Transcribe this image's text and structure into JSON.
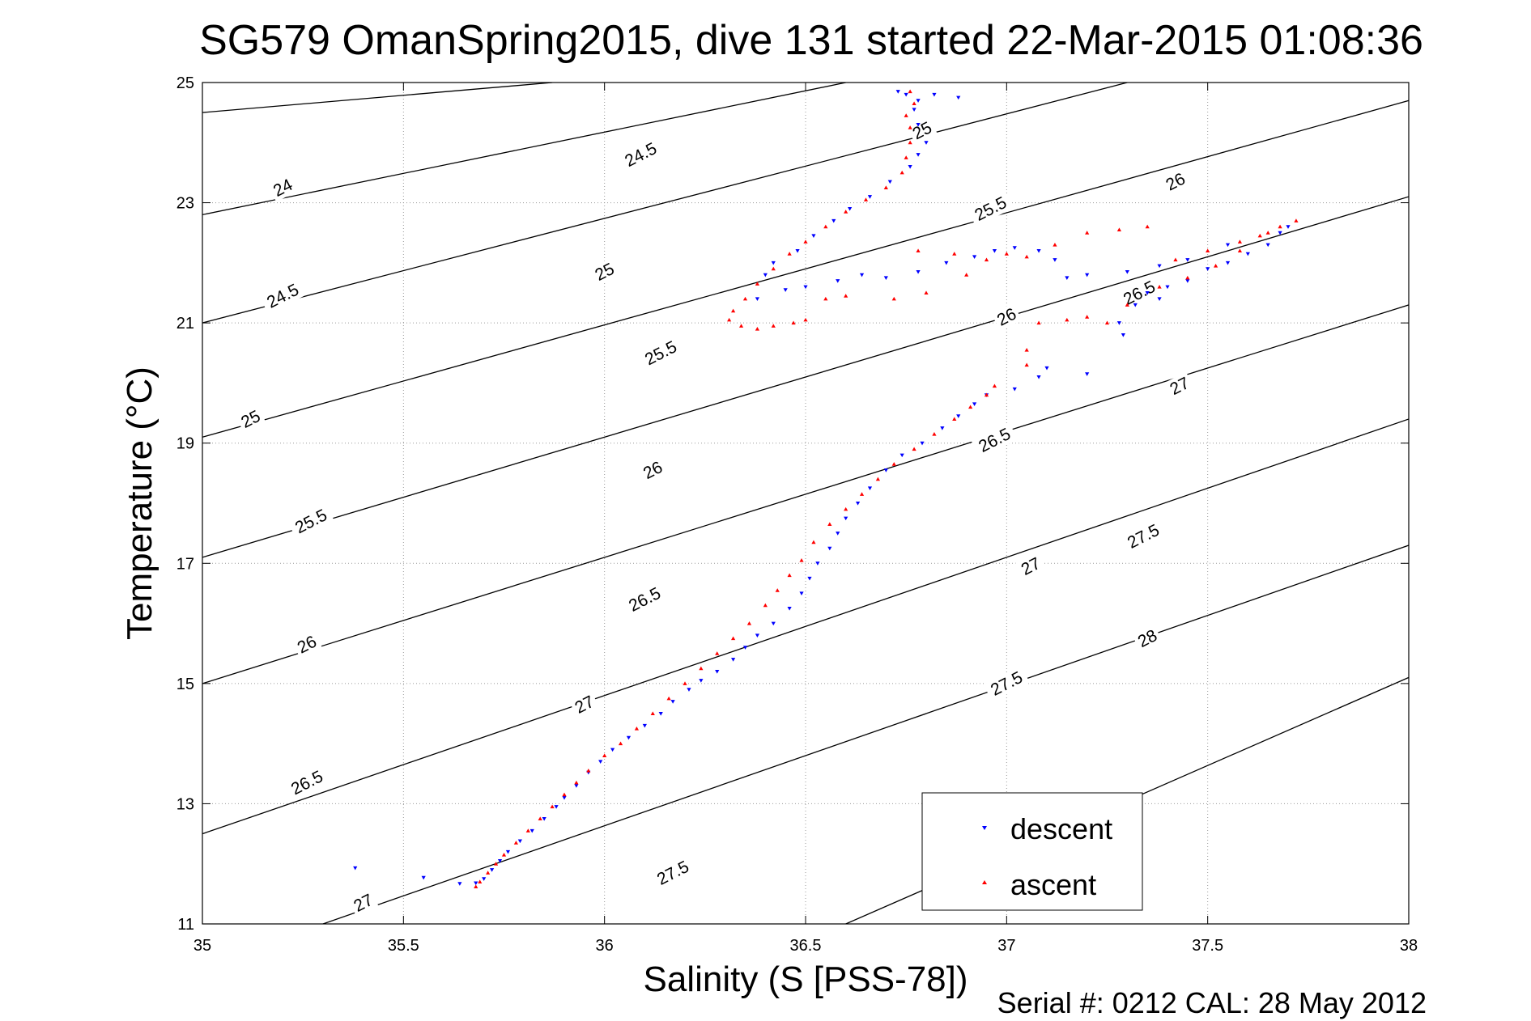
{
  "chart_data": {
    "type": "scatter",
    "title": "SG579 OmanSpring2015, dive 131 started 22-Mar-2015 01:08:36",
    "xlabel": "Salinity (S [PSS-78])",
    "ylabel": "Temperature (°C)",
    "xlim": [
      35,
      38
    ],
    "ylim": [
      11,
      25
    ],
    "xticks": [
      35,
      35.5,
      36,
      36.5,
      37,
      37.5,
      38
    ],
    "xtick_labels": [
      "35",
      "35.5",
      "36",
      "36.5",
      "37",
      "37.5",
      "38"
    ],
    "yticks": [
      11,
      13,
      15,
      17,
      19,
      21,
      23,
      25
    ],
    "ytick_labels": [
      "11",
      "13",
      "15",
      "17",
      "19",
      "21",
      "23",
      "25"
    ],
    "grid": true,
    "legend_position": "bottom-right",
    "footer": "Serial #: 0212  CAL: 28 May 2012",
    "colors": {
      "descent": "#0000ff",
      "ascent": "#ff0000",
      "contour": "#000000",
      "grid": "#9a9a9a"
    },
    "isopycnals": [
      {
        "sigma": 24,
        "label": "24",
        "points": [
          [
            35,
            24.5
          ],
          [
            35.87,
            25
          ]
        ]
      },
      {
        "sigma": 24.5,
        "label": "24.5",
        "points": [
          [
            35,
            22.8
          ],
          [
            36.6,
            25
          ]
        ]
      },
      {
        "sigma": 25,
        "label": "25",
        "points": [
          [
            35,
            21.0
          ],
          [
            37.3,
            25
          ]
        ]
      },
      {
        "sigma": 25.5,
        "label": "25.5",
        "points": [
          [
            35,
            19.1
          ],
          [
            38,
            24.7
          ]
        ]
      },
      {
        "sigma": 26,
        "label": "26",
        "points": [
          [
            35,
            17.1
          ],
          [
            38,
            23.1
          ]
        ]
      },
      {
        "sigma": 26.5,
        "label": "26.5",
        "points": [
          [
            35,
            15.0
          ],
          [
            38,
            21.3
          ]
        ]
      },
      {
        "sigma": 27,
        "label": "27",
        "points": [
          [
            35,
            12.5
          ],
          [
            38,
            19.4
          ]
        ]
      },
      {
        "sigma": 27.5,
        "label": "27.5",
        "points": [
          [
            35.3,
            11
          ],
          [
            38,
            17.3
          ]
        ]
      },
      {
        "sigma": 28,
        "label": "28",
        "points": [
          [
            36.6,
            11
          ],
          [
            38,
            15.1
          ]
        ]
      }
    ],
    "contour_labels": [
      {
        "text": "24",
        "at": [
          35.2,
          23.25
        ]
      },
      {
        "text": "24.5",
        "at": [
          36.09,
          23.8
        ]
      },
      {
        "text": "25",
        "at": [
          36.79,
          24.2
        ]
      },
      {
        "text": "24.5",
        "at": [
          35.2,
          21.45
        ]
      },
      {
        "text": "25",
        "at": [
          36.0,
          21.85
        ]
      },
      {
        "text": "25.5",
        "at": [
          36.96,
          22.9
        ]
      },
      {
        "text": "26",
        "at": [
          37.42,
          23.35
        ]
      },
      {
        "text": "25",
        "at": [
          35.12,
          19.4
        ]
      },
      {
        "text": "25.5",
        "at": [
          36.14,
          20.5
        ]
      },
      {
        "text": "26",
        "at": [
          37.0,
          21.1
        ]
      },
      {
        "text": "26.5",
        "at": [
          37.33,
          21.5
        ]
      },
      {
        "text": "25.5",
        "at": [
          35.27,
          17.7
        ]
      },
      {
        "text": "26",
        "at": [
          36.12,
          18.55
        ]
      },
      {
        "text": "26.5",
        "at": [
          36.97,
          19.05
        ]
      },
      {
        "text": "27",
        "at": [
          37.43,
          19.95
        ]
      },
      {
        "text": "26",
        "at": [
          35.26,
          15.65
        ]
      },
      {
        "text": "26.5",
        "at": [
          36.1,
          16.4
        ]
      },
      {
        "text": "27",
        "at": [
          37.06,
          16.95
        ]
      },
      {
        "text": "27.5",
        "at": [
          37.34,
          17.45
        ]
      },
      {
        "text": "26.5",
        "at": [
          35.26,
          13.35
        ]
      },
      {
        "text": "27",
        "at": [
          35.95,
          14.65
        ]
      },
      {
        "text": "27.5",
        "at": [
          37.0,
          15.0
        ]
      },
      {
        "text": "28",
        "at": [
          37.35,
          15.75
        ]
      },
      {
        "text": "27",
        "at": [
          35.4,
          11.35
        ]
      },
      {
        "text": "27.5",
        "at": [
          36.17,
          11.85
        ]
      }
    ],
    "series": [
      {
        "name": "descent",
        "marker": "triangle-down",
        "points": [
          [
            35.38,
            11.93
          ],
          [
            35.55,
            11.77
          ],
          [
            35.64,
            11.67
          ],
          [
            35.68,
            11.68
          ],
          [
            35.7,
            11.75
          ],
          [
            35.72,
            11.9
          ],
          [
            35.74,
            12.05
          ],
          [
            35.76,
            12.2
          ],
          [
            35.79,
            12.38
          ],
          [
            35.82,
            12.55
          ],
          [
            35.85,
            12.75
          ],
          [
            35.88,
            12.95
          ],
          [
            35.9,
            13.1
          ],
          [
            35.93,
            13.3
          ],
          [
            35.96,
            13.52
          ],
          [
            35.99,
            13.7
          ],
          [
            36.02,
            13.9
          ],
          [
            36.06,
            14.1
          ],
          [
            36.1,
            14.3
          ],
          [
            36.14,
            14.5
          ],
          [
            36.17,
            14.7
          ],
          [
            36.21,
            14.9
          ],
          [
            36.24,
            15.05
          ],
          [
            36.28,
            15.2
          ],
          [
            36.32,
            15.4
          ],
          [
            36.35,
            15.6
          ],
          [
            36.38,
            15.8
          ],
          [
            36.42,
            16.0
          ],
          [
            36.46,
            16.25
          ],
          [
            36.49,
            16.5
          ],
          [
            36.51,
            16.75
          ],
          [
            36.53,
            17.0
          ],
          [
            36.56,
            17.25
          ],
          [
            36.58,
            17.5
          ],
          [
            36.6,
            17.75
          ],
          [
            36.63,
            18.0
          ],
          [
            36.66,
            18.25
          ],
          [
            36.7,
            18.55
          ],
          [
            36.74,
            18.8
          ],
          [
            36.79,
            19.0
          ],
          [
            36.84,
            19.25
          ],
          [
            36.88,
            19.45
          ],
          [
            36.92,
            19.65
          ],
          [
            36.95,
            19.8
          ],
          [
            37.02,
            19.9
          ],
          [
            37.08,
            20.1
          ],
          [
            37.1,
            20.25
          ],
          [
            37.2,
            20.15
          ],
          [
            37.29,
            20.8
          ],
          [
            37.28,
            21.0
          ],
          [
            37.32,
            21.3
          ],
          [
            37.35,
            21.5
          ],
          [
            37.38,
            21.4
          ],
          [
            37.4,
            21.6
          ],
          [
            37.45,
            21.7
          ],
          [
            37.5,
            21.9
          ],
          [
            37.55,
            22.0
          ],
          [
            37.6,
            22.15
          ],
          [
            37.65,
            22.3
          ],
          [
            37.68,
            22.5
          ],
          [
            37.7,
            22.6
          ],
          [
            37.55,
            22.3
          ],
          [
            37.45,
            22.05
          ],
          [
            37.38,
            21.95
          ],
          [
            37.3,
            21.85
          ],
          [
            37.2,
            21.8
          ],
          [
            37.15,
            21.75
          ],
          [
            37.12,
            22.05
          ],
          [
            37.08,
            22.2
          ],
          [
            37.02,
            22.25
          ],
          [
            36.97,
            22.2
          ],
          [
            36.92,
            22.1
          ],
          [
            36.85,
            22.0
          ],
          [
            36.78,
            21.85
          ],
          [
            36.7,
            21.75
          ],
          [
            36.64,
            21.8
          ],
          [
            36.58,
            21.7
          ],
          [
            36.5,
            21.6
          ],
          [
            36.45,
            21.55
          ],
          [
            36.38,
            21.4
          ],
          [
            36.4,
            21.8
          ],
          [
            36.42,
            22.0
          ],
          [
            36.48,
            22.2
          ],
          [
            36.52,
            22.45
          ],
          [
            36.57,
            22.7
          ],
          [
            36.61,
            22.9
          ],
          [
            36.66,
            23.1
          ],
          [
            36.71,
            23.35
          ],
          [
            36.76,
            23.6
          ],
          [
            36.78,
            23.8
          ],
          [
            36.8,
            24.0
          ],
          [
            36.78,
            24.3
          ],
          [
            36.77,
            24.55
          ],
          [
            36.78,
            24.7
          ],
          [
            36.75,
            24.8
          ],
          [
            36.82,
            24.8
          ],
          [
            36.88,
            24.75
          ],
          [
            36.73,
            24.85
          ]
        ]
      },
      {
        "name": "ascent",
        "marker": "triangle-up",
        "points": [
          [
            35.68,
            11.62
          ],
          [
            35.69,
            11.7
          ],
          [
            35.71,
            11.85
          ],
          [
            35.73,
            12.0
          ],
          [
            35.75,
            12.15
          ],
          [
            35.78,
            12.35
          ],
          [
            35.81,
            12.55
          ],
          [
            35.84,
            12.75
          ],
          [
            35.87,
            12.95
          ],
          [
            35.9,
            13.15
          ],
          [
            35.93,
            13.35
          ],
          [
            35.96,
            13.55
          ],
          [
            36.0,
            13.8
          ],
          [
            36.04,
            14.0
          ],
          [
            36.08,
            14.25
          ],
          [
            36.12,
            14.5
          ],
          [
            36.16,
            14.75
          ],
          [
            36.2,
            15.0
          ],
          [
            36.24,
            15.25
          ],
          [
            36.28,
            15.5
          ],
          [
            36.32,
            15.75
          ],
          [
            36.36,
            16.0
          ],
          [
            36.4,
            16.3
          ],
          [
            36.43,
            16.55
          ],
          [
            36.46,
            16.8
          ],
          [
            36.49,
            17.05
          ],
          [
            36.52,
            17.35
          ],
          [
            36.56,
            17.65
          ],
          [
            36.6,
            17.9
          ],
          [
            36.64,
            18.15
          ],
          [
            36.68,
            18.4
          ],
          [
            36.72,
            18.65
          ],
          [
            36.77,
            18.9
          ],
          [
            36.82,
            19.15
          ],
          [
            36.87,
            19.4
          ],
          [
            36.91,
            19.6
          ],
          [
            36.95,
            19.8
          ],
          [
            36.97,
            19.95
          ],
          [
            37.05,
            20.3
          ],
          [
            37.05,
            20.55
          ],
          [
            37.08,
            21.0
          ],
          [
            37.15,
            21.05
          ],
          [
            37.2,
            21.1
          ],
          [
            37.25,
            21.0
          ],
          [
            37.3,
            21.3
          ],
          [
            37.38,
            21.6
          ],
          [
            37.45,
            21.75
          ],
          [
            37.52,
            21.95
          ],
          [
            37.58,
            22.2
          ],
          [
            37.63,
            22.45
          ],
          [
            37.68,
            22.6
          ],
          [
            37.72,
            22.7
          ],
          [
            37.65,
            22.5
          ],
          [
            37.58,
            22.35
          ],
          [
            37.5,
            22.2
          ],
          [
            37.42,
            22.05
          ],
          [
            37.35,
            22.6
          ],
          [
            37.28,
            22.55
          ],
          [
            37.2,
            22.5
          ],
          [
            37.12,
            22.3
          ],
          [
            37.05,
            22.1
          ],
          [
            37.0,
            22.15
          ],
          [
            36.95,
            22.05
          ],
          [
            36.9,
            21.8
          ],
          [
            36.8,
            21.5
          ],
          [
            36.72,
            21.4
          ],
          [
            36.6,
            21.45
          ],
          [
            36.5,
            21.05
          ],
          [
            36.47,
            21.0
          ],
          [
            36.42,
            20.95
          ],
          [
            36.38,
            20.9
          ],
          [
            36.34,
            20.95
          ],
          [
            36.31,
            21.05
          ],
          [
            36.32,
            21.2
          ],
          [
            36.35,
            21.4
          ],
          [
            36.38,
            21.65
          ],
          [
            36.42,
            21.9
          ],
          [
            36.46,
            22.15
          ],
          [
            36.5,
            22.35
          ],
          [
            36.55,
            22.6
          ],
          [
            36.6,
            22.85
          ],
          [
            36.65,
            23.05
          ],
          [
            36.7,
            23.25
          ],
          [
            36.74,
            23.5
          ],
          [
            36.75,
            23.75
          ],
          [
            36.76,
            24.0
          ],
          [
            36.76,
            24.25
          ],
          [
            36.75,
            24.45
          ],
          [
            36.77,
            24.65
          ],
          [
            36.76,
            24.85
          ],
          [
            36.87,
            22.15
          ],
          [
            36.78,
            22.2
          ],
          [
            36.55,
            21.4
          ]
        ]
      }
    ]
  }
}
